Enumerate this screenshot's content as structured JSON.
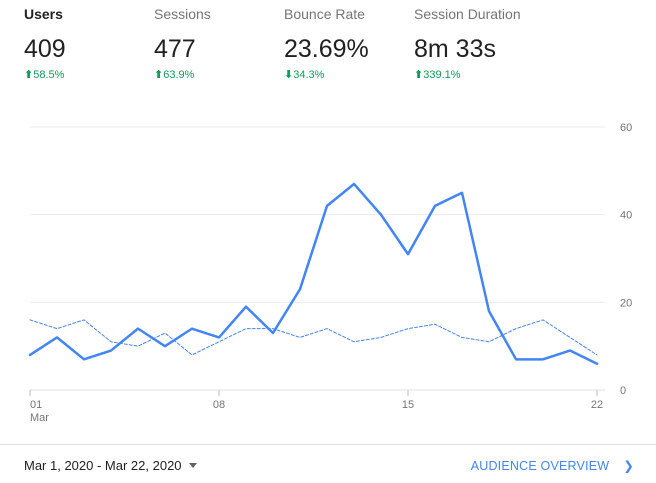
{
  "metrics": [
    {
      "label": "Users",
      "value": "409",
      "change_arrow": "⬆",
      "change": "58.5%",
      "direction": "up"
    },
    {
      "label": "Sessions",
      "value": "477",
      "change_arrow": "⬆",
      "change": "63.9%",
      "direction": "up"
    },
    {
      "label": "Bounce Rate",
      "value": "23.69%",
      "change_arrow": "⬇",
      "change": "34.3%",
      "direction": "down"
    },
    {
      "label": "Session Duration",
      "value": "8m 33s",
      "change_arrow": "⬆",
      "change": "339.1%",
      "direction": "up"
    }
  ],
  "colors": {
    "primary_line": "#4285f4",
    "positive_change": "#0f9d58",
    "grid": "#ebebeb",
    "axis_text": "#757575"
  },
  "chart_data": {
    "type": "line",
    "x": [
      "01",
      "02",
      "03",
      "04",
      "05",
      "06",
      "07",
      "08",
      "09",
      "10",
      "11",
      "12",
      "13",
      "14",
      "15",
      "16",
      "17",
      "18",
      "19",
      "20",
      "21",
      "22"
    ],
    "x_tick_labels": [
      "01",
      "08",
      "15",
      "22"
    ],
    "x_sub_label": "Mar",
    "ylim": [
      0,
      60
    ],
    "y_ticks": [
      0,
      20,
      40,
      60
    ],
    "grid": true,
    "series": [
      {
        "style": "solid",
        "values": [
          8,
          12,
          7,
          9,
          14,
          10,
          14,
          12,
          19,
          13,
          23,
          42,
          47,
          40,
          31,
          42,
          45,
          18,
          7,
          7,
          9,
          6
        ]
      },
      {
        "style": "dashed",
        "values": [
          16,
          14,
          16,
          11,
          10,
          13,
          8,
          11,
          14,
          14,
          12,
          14,
          11,
          12,
          14,
          15,
          12,
          11,
          14,
          16,
          12,
          8
        ]
      }
    ]
  },
  "footer": {
    "date_range": "Mar 1, 2020 - Mar 22, 2020",
    "audience_link": "AUDIENCE OVERVIEW",
    "audience_chevron": "❯"
  }
}
